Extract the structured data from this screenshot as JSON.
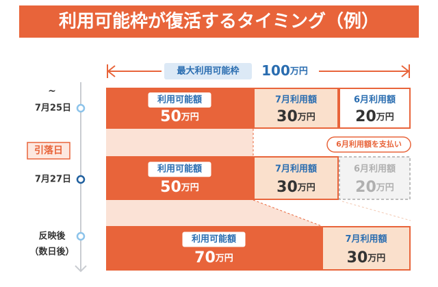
{
  "header": {
    "title": "利用可能枠が復活するタイミング（例）"
  },
  "limit": {
    "label": "最大利用可能枠",
    "amount": "100",
    "unit": "万円"
  },
  "rows": [
    {
      "marker": "~",
      "date": "7月25日",
      "segments": [
        {
          "label": "利用可能額",
          "amount": "50",
          "unit": "万円"
        },
        {
          "label": "7月利用額",
          "amount": "30",
          "unit": "万円"
        },
        {
          "label": "6月利用額",
          "amount": "20",
          "unit": "万円"
        }
      ]
    },
    {
      "tag": "引落日",
      "date": "7月27日",
      "note": "6月利用額を支払い",
      "segments": [
        {
          "label": "利用可能額",
          "amount": "50",
          "unit": "万円"
        },
        {
          "label": "7月利用額",
          "amount": "30",
          "unit": "万円"
        },
        {
          "label": "6月利用額",
          "amount": "20",
          "unit": "万円"
        }
      ]
    },
    {
      "date": "反映後",
      "date_sub": "（数日後）",
      "segments": [
        {
          "label": "利用可能額",
          "amount": "70",
          "unit": "万円"
        },
        {
          "label": "7月利用額",
          "amount": "30",
          "unit": "万円"
        }
      ]
    }
  ]
}
